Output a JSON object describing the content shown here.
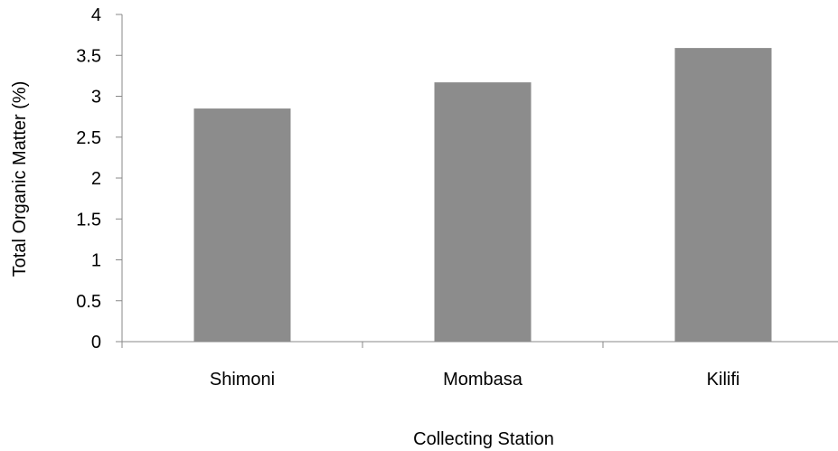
{
  "chart_data": {
    "type": "bar",
    "title": "",
    "xlabel": "Collecting Station",
    "ylabel": "Total Organic Matter (%)",
    "categories": [
      "Shimoni",
      "Mombasa",
      "Kilifi"
    ],
    "values": [
      2.85,
      3.17,
      3.59
    ],
    "ylim": [
      0,
      4
    ],
    "yticks": [
      "0",
      "0.5",
      "1",
      "1.5",
      "2",
      "2.5",
      "3",
      "3.5",
      "4"
    ],
    "grid": false,
    "legend": "none",
    "bar_color": "#8c8c8c",
    "axis_color": "#888888"
  }
}
